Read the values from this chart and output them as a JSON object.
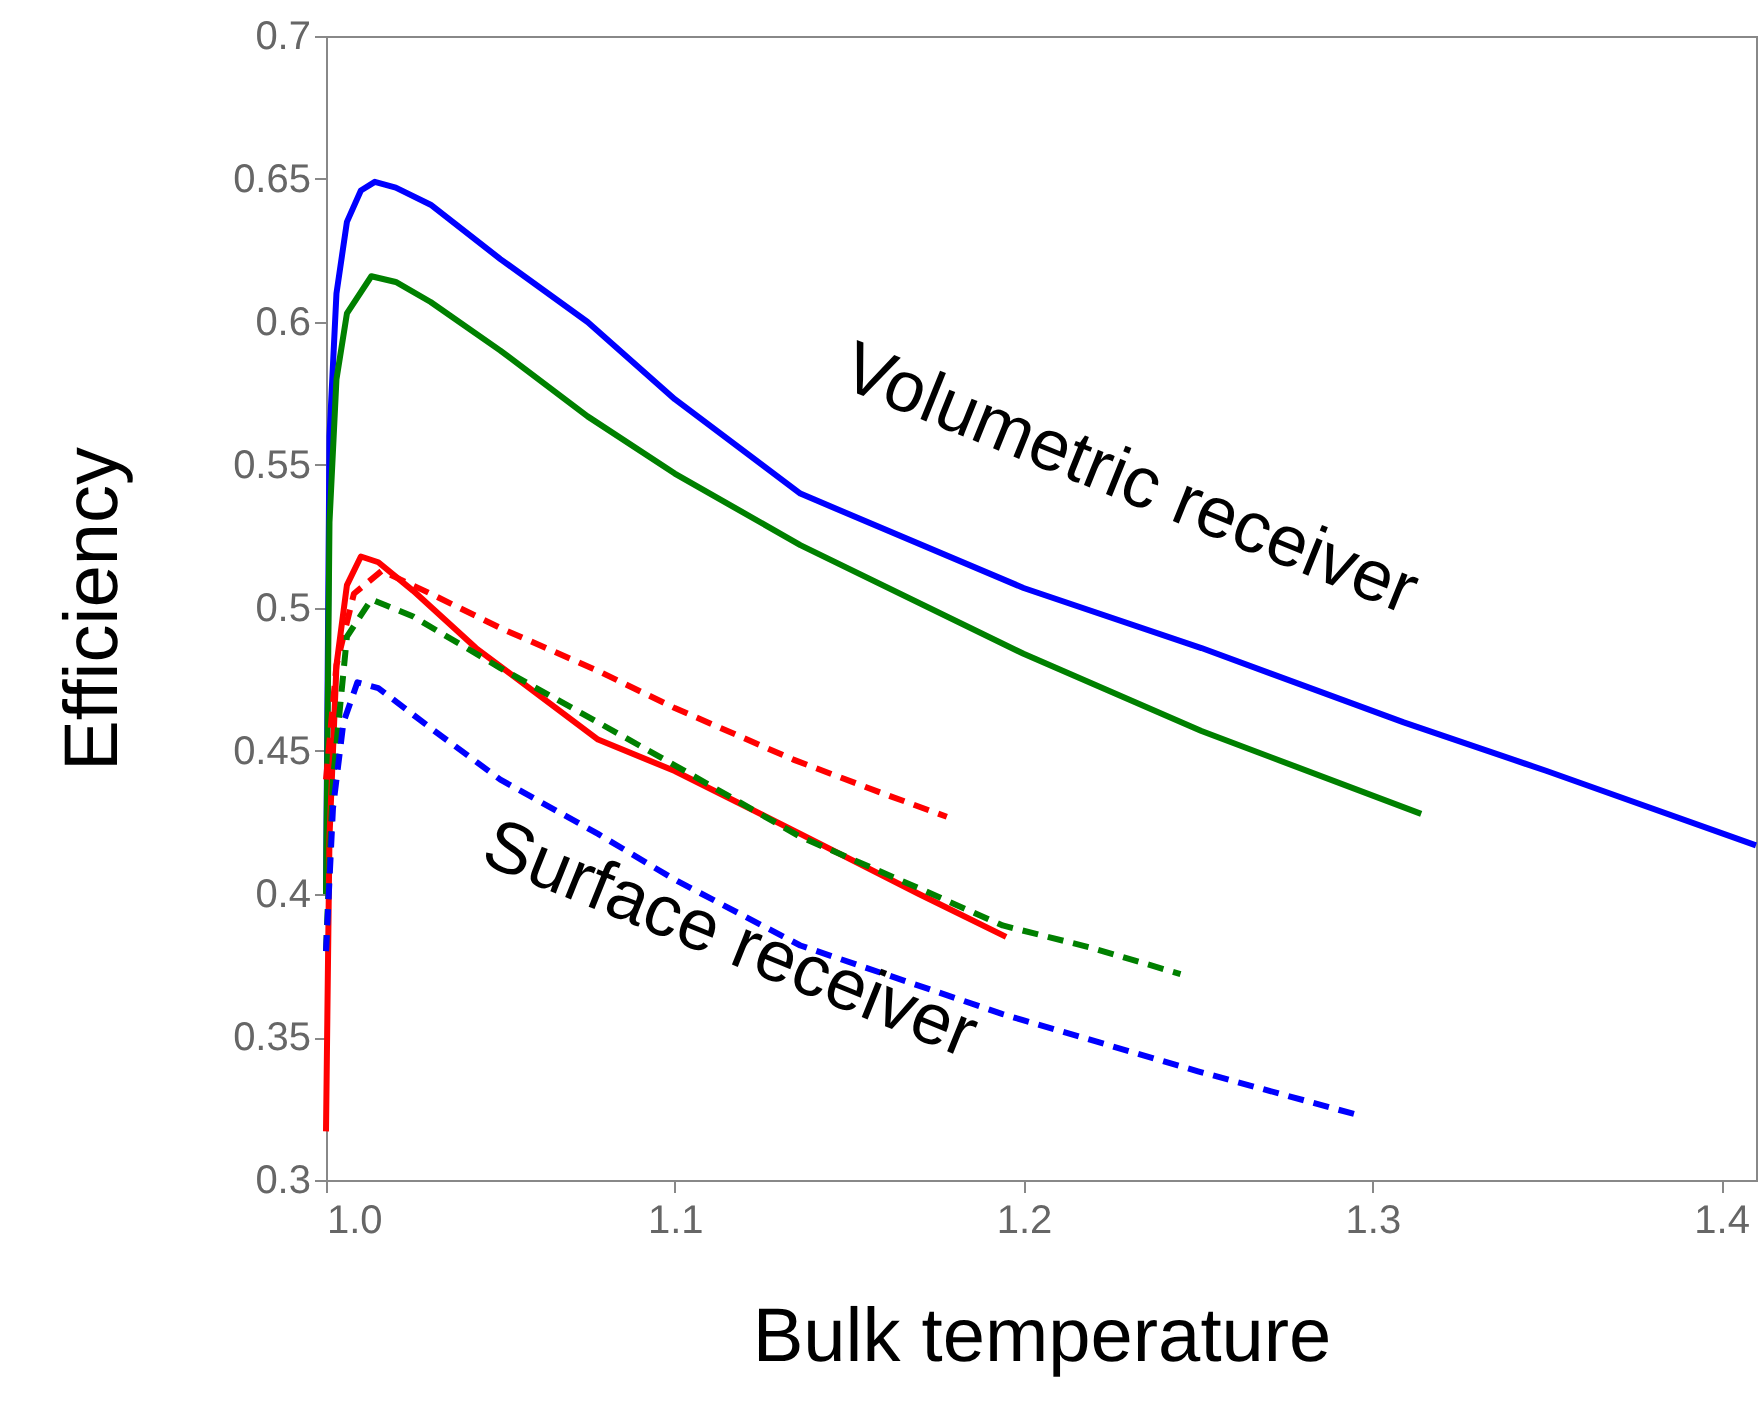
{
  "chart_data": {
    "type": "line",
    "xlabel": "Bulk temperature",
    "ylabel": "Efficiency",
    "xlim": [
      1.0,
      1.41
    ],
    "xticks": [
      {
        "value": 1.0,
        "label": "1.0"
      },
      1.1,
      1.2,
      1.3,
      1.4
    ],
    "ylim": [
      0.3,
      0.7
    ],
    "yticks": [
      0.3,
      0.35,
      0.4,
      0.45,
      0.5,
      0.55,
      0.6,
      0.65,
      0.7
    ],
    "grid": false,
    "annotations": [
      "Volumetric  receiver",
      "Surface receiver"
    ],
    "series": [
      {
        "color": "#0000ff",
        "line_style": "solid",
        "x": [
          1.0,
          1.001,
          1.003,
          1.006,
          1.01,
          1.014,
          1.02,
          1.03,
          1.05,
          1.075,
          1.1,
          1.136,
          1.2,
          1.251,
          1.309,
          1.35,
          1.41
        ],
        "values": [
          0.4,
          0.56,
          0.61,
          0.635,
          0.646,
          0.649,
          0.647,
          0.641,
          0.622,
          0.6,
          0.573,
          0.54,
          0.507,
          0.486,
          0.46,
          0.443,
          0.417
        ]
      },
      {
        "color": "#008000",
        "line_style": "solid",
        "x": [
          1.0,
          1.001,
          1.003,
          1.006,
          1.013,
          1.02,
          1.03,
          1.05,
          1.075,
          1.1,
          1.136,
          1.2,
          1.251,
          1.314
        ],
        "values": [
          0.4,
          0.53,
          0.58,
          0.603,
          0.616,
          0.614,
          0.607,
          0.59,
          0.567,
          0.547,
          0.522,
          0.484,
          0.457,
          0.428
        ]
      },
      {
        "color": "#ff0000",
        "line_style": "solid",
        "x": [
          1.0,
          1.001,
          1.003,
          1.006,
          1.01,
          1.015,
          1.025,
          1.043,
          1.078,
          1.1,
          1.136,
          1.17,
          1.195
        ],
        "values": [
          0.317,
          0.42,
          0.48,
          0.508,
          0.518,
          0.516,
          0.506,
          0.486,
          0.454,
          0.443,
          0.421,
          0.4,
          0.385
        ]
      },
      {
        "color": "#ff0000",
        "line_style": "dashed",
        "x": [
          1.0,
          1.003,
          1.008,
          1.016,
          1.03,
          1.05,
          1.078,
          1.1,
          1.134,
          1.16,
          1.178
        ],
        "values": [
          0.44,
          0.48,
          0.505,
          0.513,
          0.505,
          0.493,
          0.478,
          0.465,
          0.447,
          0.435,
          0.427
        ]
      },
      {
        "color": "#008000",
        "line_style": "dashed",
        "x": [
          1.0,
          1.002,
          1.006,
          1.013,
          1.025,
          1.05,
          1.078,
          1.1,
          1.136,
          1.17,
          1.194,
          1.22,
          1.245
        ],
        "values": [
          0.38,
          0.44,
          0.49,
          0.503,
          0.497,
          0.479,
          0.46,
          0.445,
          0.42,
          0.402,
          0.389,
          0.381,
          0.372
        ]
      },
      {
        "color": "#0000ff",
        "line_style": "dashed",
        "x": [
          1.0,
          1.002,
          1.005,
          1.009,
          1.015,
          1.03,
          1.05,
          1.078,
          1.1,
          1.136,
          1.194,
          1.25,
          1.295
        ],
        "values": [
          0.38,
          0.43,
          0.46,
          0.474,
          0.472,
          0.458,
          0.44,
          0.421,
          0.405,
          0.382,
          0.358,
          0.338,
          0.323
        ]
      }
    ]
  }
}
